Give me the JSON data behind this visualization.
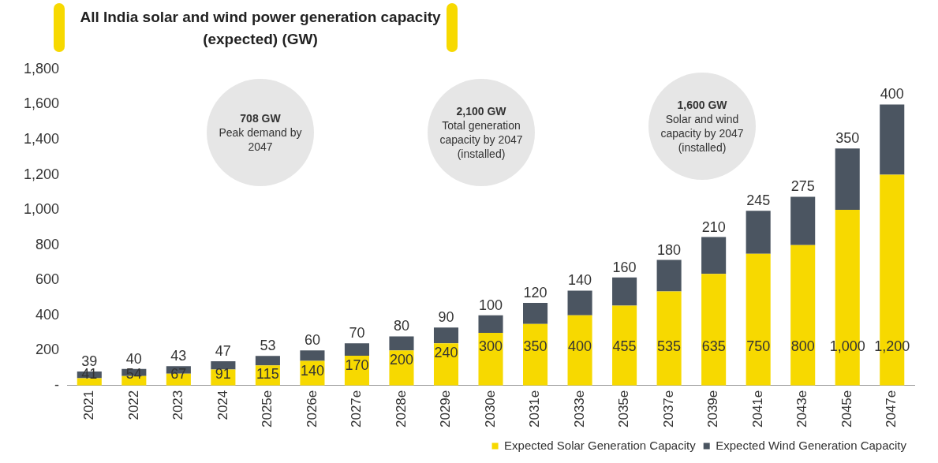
{
  "chart_data": {
    "type": "bar",
    "title": "All India solar and wind power generation capacity (expected) (GW)",
    "categories": [
      "2021",
      "2022",
      "2023",
      "2024",
      "2025e",
      "2026e",
      "2027e",
      "2028e",
      "2029e",
      "2030e",
      "2031e",
      "2033e",
      "2035e",
      "2037e",
      "2039e",
      "2041e",
      "2043e",
      "2045e",
      "2047e"
    ],
    "series": [
      {
        "name": "Expected Solar Generation Capacity",
        "color": "#f7d900",
        "values": [
          41,
          54,
          67,
          91,
          115,
          140,
          170,
          200,
          240,
          300,
          350,
          400,
          455,
          535,
          635,
          750,
          800,
          1000,
          1200
        ],
        "value_labels": [
          "41",
          "54",
          "67",
          "91",
          "115",
          "140",
          "170",
          "200",
          "240",
          "300",
          "350",
          "400",
          "455",
          "535",
          "635",
          "750",
          "800",
          "1,000",
          "1,200"
        ]
      },
      {
        "name": "Expected Wind Generation Capacity",
        "color": "#4b5561",
        "values": [
          39,
          40,
          43,
          47,
          53,
          60,
          70,
          80,
          90,
          100,
          120,
          140,
          160,
          180,
          210,
          245,
          275,
          350,
          400
        ],
        "value_labels": [
          "39",
          "40",
          "43",
          "47",
          "53",
          "60",
          "70",
          "80",
          "90",
          "100",
          "120",
          "140",
          "160",
          "180",
          "210",
          "245",
          "275",
          "350",
          "400"
        ]
      }
    ],
    "stacked": true,
    "ylim": [
      0,
      1800
    ],
    "yticks": [
      {
        "value": 0,
        "label": "-"
      },
      200,
      400,
      600,
      800,
      {
        "value": 1000,
        "label": "1,000"
      },
      {
        "value": 1200,
        "label": "1,200"
      },
      {
        "value": 1400,
        "label": "1,400"
      },
      {
        "value": 1600,
        "label": "1,600"
      },
      {
        "value": 1800,
        "label": "1,800"
      }
    ],
    "grid": false,
    "legend": "bottom right",
    "annotations": [
      "708 GW\nPeak demand by 2047",
      "2,100 GW\nTotal generation capacity by 2047 (installed)",
      "1,600 GW\nSolar and wind capacity by 2047 (installed)"
    ]
  }
}
